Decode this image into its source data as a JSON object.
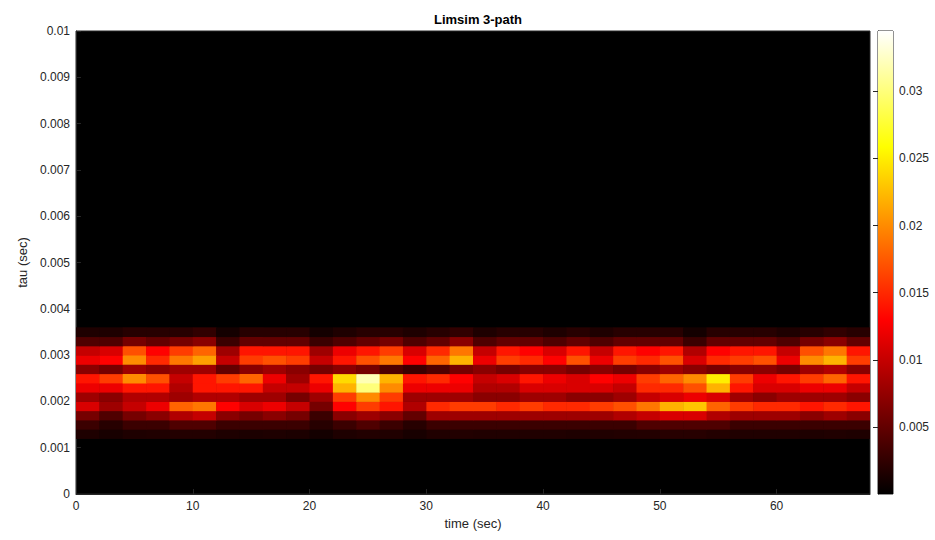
{
  "chart_data": {
    "type": "heatmap",
    "title": "Limsim 3-path",
    "xlabel": "time (sec)",
    "ylabel": "tau (sec)",
    "xlim": [
      0,
      68
    ],
    "xticks": [
      0,
      10,
      20,
      30,
      40,
      50,
      60
    ],
    "ylim": [
      0,
      0.01
    ],
    "yticks": [
      0,
      0.001,
      0.002,
      0.003,
      0.004,
      0.005,
      0.006,
      0.007,
      0.008,
      0.009,
      0.01
    ],
    "grid": false,
    "cells": {
      "x_edges": [
        0,
        2,
        4,
        6,
        8,
        10,
        12,
        14,
        16,
        18,
        20,
        22,
        24,
        26,
        28,
        30,
        32,
        34,
        36,
        38,
        40,
        42,
        44,
        46,
        48,
        50,
        52,
        54,
        56,
        58,
        60,
        62,
        64,
        66,
        68
      ],
      "y_edges": [
        0.0012,
        0.0014,
        0.0016,
        0.0018,
        0.002,
        0.0022,
        0.0024,
        0.0026,
        0.0028,
        0.003,
        0.0032,
        0.0034,
        0.0036
      ],
      "values": [
        [
          0.0015,
          0.0012,
          0.0015,
          0.0016,
          0.0018,
          0.0018,
          0.0015,
          0.0014,
          0.0015,
          0.0014,
          0.001,
          0.0015,
          0.0017,
          0.0016,
          0.0012,
          0.0016,
          0.0017,
          0.0016,
          0.0016,
          0.0016,
          0.0016,
          0.0015,
          0.0016,
          0.0017,
          0.0018,
          0.002,
          0.002,
          0.0018,
          0.0016,
          0.0016,
          0.0016,
          0.0015,
          0.0016,
          0.0015
        ],
        [
          0.003,
          0.002,
          0.003,
          0.003,
          0.004,
          0.004,
          0.003,
          0.003,
          0.003,
          0.003,
          0.002,
          0.003,
          0.004,
          0.003,
          0.002,
          0.003,
          0.003,
          0.003,
          0.003,
          0.003,
          0.003,
          0.003,
          0.003,
          0.003,
          0.004,
          0.004,
          0.004,
          0.004,
          0.003,
          0.003,
          0.003,
          0.003,
          0.003,
          0.003
        ],
        [
          0.006,
          0.004,
          0.006,
          0.007,
          0.009,
          0.01,
          0.007,
          0.006,
          0.007,
          0.006,
          0.003,
          0.007,
          0.008,
          0.007,
          0.005,
          0.008,
          0.008,
          0.008,
          0.008,
          0.008,
          0.008,
          0.008,
          0.008,
          0.009,
          0.01,
          0.011,
          0.011,
          0.009,
          0.008,
          0.008,
          0.008,
          0.007,
          0.008,
          0.007
        ],
        [
          0.011,
          0.008,
          0.01,
          0.012,
          0.018,
          0.019,
          0.013,
          0.011,
          0.012,
          0.01,
          0.006,
          0.013,
          0.016,
          0.014,
          0.009,
          0.015,
          0.016,
          0.016,
          0.015,
          0.016,
          0.015,
          0.015,
          0.016,
          0.017,
          0.019,
          0.022,
          0.023,
          0.018,
          0.016,
          0.015,
          0.015,
          0.014,
          0.015,
          0.014
        ],
        [
          0.008,
          0.007,
          0.009,
          0.009,
          0.008,
          0.009,
          0.009,
          0.008,
          0.008,
          0.006,
          0.008,
          0.016,
          0.02,
          0.016,
          0.008,
          0.008,
          0.008,
          0.007,
          0.007,
          0.008,
          0.008,
          0.007,
          0.007,
          0.008,
          0.01,
          0.011,
          0.012,
          0.011,
          0.008,
          0.007,
          0.008,
          0.008,
          0.008,
          0.007
        ],
        [
          0.012,
          0.012,
          0.014,
          0.014,
          0.009,
          0.014,
          0.014,
          0.014,
          0.01,
          0.01,
          0.012,
          0.022,
          0.03,
          0.02,
          0.012,
          0.012,
          0.012,
          0.009,
          0.009,
          0.011,
          0.011,
          0.011,
          0.011,
          0.01,
          0.015,
          0.015,
          0.017,
          0.022,
          0.014,
          0.011,
          0.011,
          0.012,
          0.012,
          0.01
        ],
        [
          0.014,
          0.016,
          0.02,
          0.017,
          0.01,
          0.014,
          0.016,
          0.018,
          0.012,
          0.008,
          0.014,
          0.024,
          0.032,
          0.022,
          0.014,
          0.015,
          0.013,
          0.01,
          0.011,
          0.014,
          0.012,
          0.011,
          0.013,
          0.012,
          0.016,
          0.018,
          0.02,
          0.025,
          0.016,
          0.012,
          0.014,
          0.016,
          0.018,
          0.014
        ],
        [
          0.007,
          0.006,
          0.008,
          0.007,
          0.008,
          0.008,
          0.005,
          0.007,
          0.008,
          0.007,
          0.006,
          0.007,
          0.006,
          0.004,
          0.003,
          0.004,
          0.006,
          0.007,
          0.006,
          0.007,
          0.007,
          0.006,
          0.007,
          0.006,
          0.007,
          0.008,
          0.007,
          0.006,
          0.007,
          0.007,
          0.006,
          0.008,
          0.009,
          0.007
        ],
        [
          0.012,
          0.013,
          0.02,
          0.015,
          0.019,
          0.021,
          0.01,
          0.016,
          0.017,
          0.016,
          0.01,
          0.014,
          0.017,
          0.019,
          0.013,
          0.018,
          0.022,
          0.012,
          0.016,
          0.015,
          0.013,
          0.017,
          0.012,
          0.016,
          0.015,
          0.017,
          0.011,
          0.015,
          0.016,
          0.017,
          0.012,
          0.02,
          0.022,
          0.016
        ],
        [
          0.01,
          0.011,
          0.017,
          0.013,
          0.016,
          0.018,
          0.008,
          0.014,
          0.014,
          0.014,
          0.008,
          0.012,
          0.014,
          0.016,
          0.011,
          0.015,
          0.019,
          0.01,
          0.014,
          0.013,
          0.011,
          0.014,
          0.01,
          0.014,
          0.013,
          0.014,
          0.009,
          0.013,
          0.014,
          0.014,
          0.01,
          0.017,
          0.019,
          0.014
        ],
        [
          0.004,
          0.004,
          0.006,
          0.005,
          0.006,
          0.007,
          0.003,
          0.005,
          0.005,
          0.005,
          0.003,
          0.004,
          0.005,
          0.006,
          0.004,
          0.005,
          0.007,
          0.004,
          0.005,
          0.005,
          0.004,
          0.005,
          0.004,
          0.005,
          0.005,
          0.005,
          0.003,
          0.005,
          0.005,
          0.005,
          0.004,
          0.006,
          0.007,
          0.005
        ],
        [
          0.0015,
          0.0015,
          0.002,
          0.002,
          0.002,
          0.0025,
          0.001,
          0.002,
          0.002,
          0.002,
          0.001,
          0.0015,
          0.002,
          0.002,
          0.0015,
          0.002,
          0.0025,
          0.0015,
          0.002,
          0.002,
          0.0015,
          0.002,
          0.0015,
          0.002,
          0.002,
          0.002,
          0.001,
          0.002,
          0.002,
          0.002,
          0.0015,
          0.002,
          0.0025,
          0.002
        ]
      ]
    },
    "colorbar": {
      "clim": [
        0,
        0.0345
      ],
      "cticks": [
        0.005,
        0.01,
        0.015,
        0.02,
        0.025,
        0.03
      ]
    }
  }
}
